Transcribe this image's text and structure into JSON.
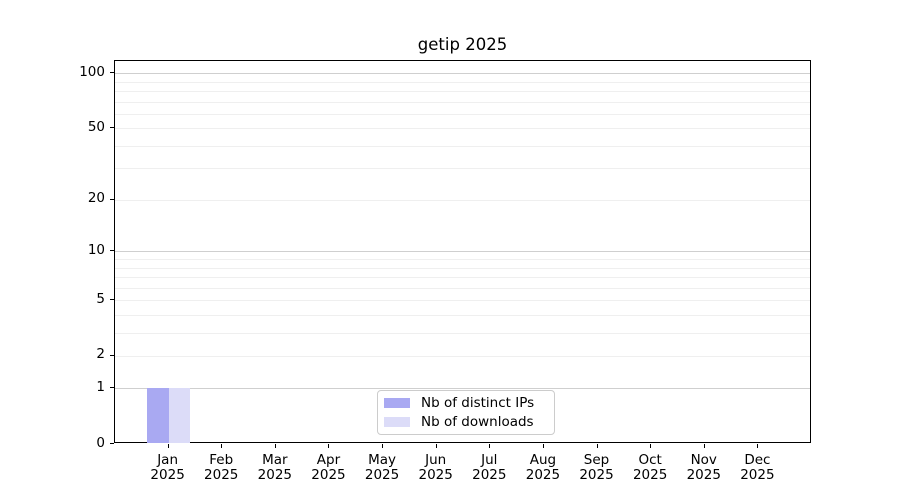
{
  "chart_data": {
    "type": "bar",
    "title": "getip 2025",
    "categories": [
      "Jan",
      "Feb",
      "Mar",
      "Apr",
      "May",
      "Jun",
      "Jul",
      "Aug",
      "Sep",
      "Oct",
      "Nov",
      "Dec"
    ],
    "category_year": "2025",
    "series": [
      {
        "name": "Nb of distinct IPs",
        "color": "#a9a9f2",
        "values": [
          1,
          0,
          0,
          0,
          0,
          0,
          0,
          0,
          0,
          0,
          0,
          0
        ]
      },
      {
        "name": "Nb of downloads",
        "color": "#dcdcf8",
        "values": [
          1,
          0,
          0,
          0,
          0,
          0,
          0,
          0,
          0,
          0,
          0,
          0
        ]
      }
    ],
    "xlabel": "",
    "ylabel": "",
    "yscale": "log1p",
    "ylim": [
      0,
      117
    ],
    "ytick_labels": [
      "0",
      "1",
      "2",
      "5",
      "10",
      "20",
      "50",
      "100"
    ],
    "ytick_values": [
      0,
      1,
      2,
      5,
      10,
      20,
      50,
      100
    ],
    "major_gridlines": [
      1,
      10,
      100
    ],
    "minor_gridlines": [
      2,
      3,
      4,
      5,
      6,
      7,
      8,
      9,
      20,
      30,
      40,
      50,
      60,
      70,
      80,
      90
    ],
    "grid": "on",
    "legend_position": "lower center",
    "bar_width_fraction": 0.4
  }
}
